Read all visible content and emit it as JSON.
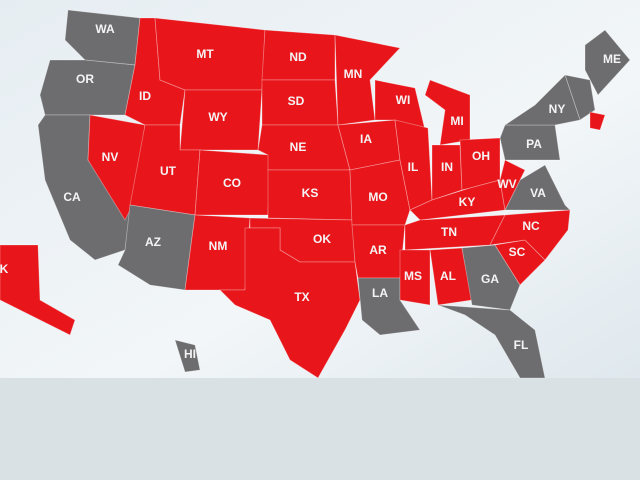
{
  "map": {
    "states": [
      {
        "label": "WA",
        "color": "#6d6d70"
      },
      {
        "label": "OR",
        "color": "#6d6d70"
      },
      {
        "label": "CA",
        "color": "#6d6d70"
      },
      {
        "label": "NV",
        "color": "#e8161b"
      },
      {
        "label": "ID",
        "color": "#e8161b"
      },
      {
        "label": "MT",
        "color": "#e8161b"
      },
      {
        "label": "WY",
        "color": "#e8161b"
      },
      {
        "label": "UT",
        "color": "#e8161b"
      },
      {
        "label": "CO",
        "color": "#e8161b"
      },
      {
        "label": "AZ",
        "color": "#6d6d70"
      },
      {
        "label": "NM",
        "color": "#e8161b"
      },
      {
        "label": "ND",
        "color": "#e8161b"
      },
      {
        "label": "SD",
        "color": "#e8161b"
      },
      {
        "label": "NE",
        "color": "#e8161b"
      },
      {
        "label": "KS",
        "color": "#e8161b"
      },
      {
        "label": "OK",
        "color": "#e8161b"
      },
      {
        "label": "TX",
        "color": "#e8161b"
      },
      {
        "label": "MN",
        "color": "#e8161b"
      },
      {
        "label": "IA",
        "color": "#e8161b"
      },
      {
        "label": "MO",
        "color": "#e8161b"
      },
      {
        "label": "AR",
        "color": "#e8161b"
      },
      {
        "label": "LA",
        "color": "#6d6d70"
      },
      {
        "label": "WI",
        "color": "#e8161b"
      },
      {
        "label": "IL",
        "color": "#e8161b"
      },
      {
        "label": "MI",
        "color": "#e8161b"
      },
      {
        "label": "IN",
        "color": "#e8161b"
      },
      {
        "label": "OH",
        "color": "#e8161b"
      },
      {
        "label": "KY",
        "color": "#e8161b"
      },
      {
        "label": "TN",
        "color": "#e8161b"
      },
      {
        "label": "MS",
        "color": "#e8161b"
      },
      {
        "label": "AL",
        "color": "#e8161b"
      },
      {
        "label": "GA",
        "color": "#6d6d70"
      },
      {
        "label": "FL",
        "color": "#6d6d70"
      },
      {
        "label": "SC",
        "color": "#e8161b"
      },
      {
        "label": "NC",
        "color": "#e8161b"
      },
      {
        "label": "VA",
        "color": "#6d6d70"
      },
      {
        "label": "WV",
        "color": "#e8161b"
      },
      {
        "label": "PA",
        "color": "#6d6d70"
      },
      {
        "label": "NY",
        "color": "#6d6d70"
      },
      {
        "label": "ME",
        "color": "#6d6d70"
      },
      {
        "label": "HI",
        "color": "#6d6d70"
      },
      {
        "label": "K",
        "color": "#e8161b"
      }
    ]
  }
}
